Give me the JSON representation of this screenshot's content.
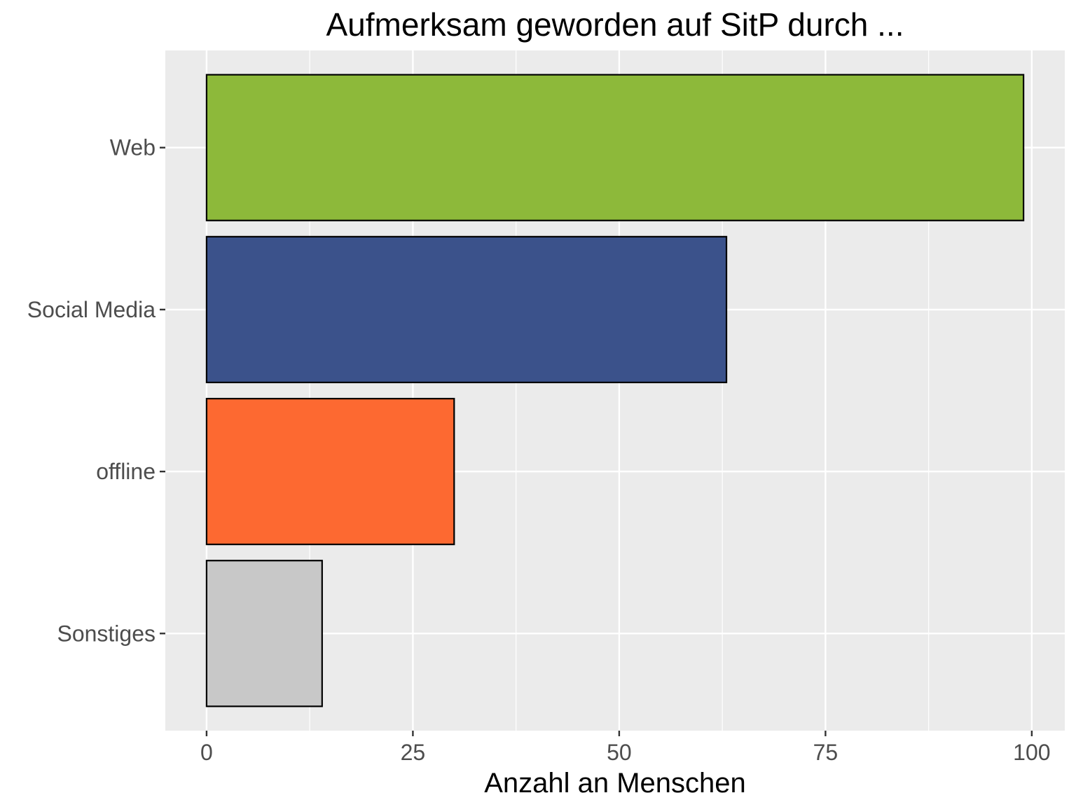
{
  "chart_data": {
    "type": "bar",
    "orientation": "horizontal",
    "title": "Aufmerksam geworden auf SitP durch ...",
    "xlabel": "Anzahl an Menschen",
    "ylabel": "",
    "categories": [
      "Web",
      "Social Media",
      "offline",
      "Sonstiges"
    ],
    "values": [
      99,
      63,
      30,
      14
    ],
    "colors": [
      "#8db93a",
      "#3b528b",
      "#fd6931",
      "#c8c8c8"
    ],
    "xlim": [
      -5,
      104
    ],
    "x_ticks": [
      0,
      25,
      50,
      75,
      100
    ],
    "x_tick_labels": [
      "0",
      "25",
      "50",
      "75",
      "100"
    ],
    "grid": true,
    "legend": "none",
    "panel_background": "#ebebeb"
  }
}
